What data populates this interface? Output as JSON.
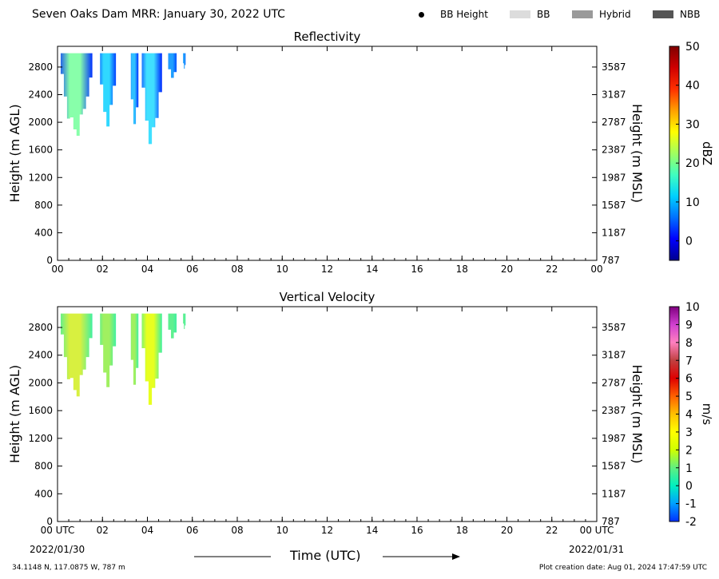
{
  "header": {
    "title": "Seven Oaks Dam MRR:  January 30, 2022 UTC",
    "legend": [
      {
        "label": "BB Height",
        "marker": "dot",
        "color": "#000000"
      },
      {
        "label": "BB",
        "marker": "swatch",
        "color": "#dcdcdc"
      },
      {
        "label": "Hybrid",
        "marker": "swatch",
        "color": "#9a9a9a"
      },
      {
        "label": "NBB",
        "marker": "swatch",
        "color": "#555555"
      }
    ]
  },
  "footer": {
    "x_label": "Time (UTC)",
    "start_date": "2022/01/30",
    "end_date": "2022/01/31",
    "location": "34.1148 N, 117.0875 W, 787 m",
    "creation": "Plot creation date: Aug 01, 2024 17:47:59 UTC"
  },
  "chart_data": [
    {
      "type": "heatmap",
      "title": "Reflectivity",
      "ylabel": "Height (m AGL)",
      "y2label": "Height (m MSL)",
      "xlim": [
        0,
        24
      ],
      "ylim": [
        0,
        3100
      ],
      "x_tick_labels": [
        "00",
        "02",
        "04",
        "06",
        "08",
        "10",
        "12",
        "14",
        "16",
        "18",
        "20",
        "22",
        "00"
      ],
      "y_ticks": [
        0,
        400,
        800,
        1200,
        1600,
        2000,
        2400,
        2800
      ],
      "y2_ticks": [
        "787",
        "1187",
        "1587",
        "1987",
        "2387",
        "2787",
        "3187",
        "3587"
      ],
      "colorbar": {
        "label": "dBZ",
        "range": [
          -5,
          50
        ],
        "ticks": [
          0,
          10,
          20,
          30,
          40,
          50
        ],
        "colors": [
          "#00008f",
          "#0000ff",
          "#0070ff",
          "#00d0ff",
          "#40ffbf",
          "#a0ff60",
          "#ffff00",
          "#ffa000",
          "#ff3000",
          "#d00000",
          "#800000"
        ]
      },
      "precip_bands": [
        {
          "x_start": 0.0,
          "x_end": 1.55,
          "base_height": 1700,
          "core_color": "#88ffaa",
          "edge_color": "#0030ff"
        },
        {
          "x_start": 1.75,
          "x_end": 2.6,
          "base_height": 1900,
          "core_color": "#30d8ff",
          "edge_color": "#0040ff"
        },
        {
          "x_start": 3.15,
          "x_end": 3.6,
          "base_height": 1850,
          "core_color": "#30c0ff",
          "edge_color": "#0030ff"
        },
        {
          "x_start": 3.6,
          "x_end": 4.65,
          "base_height": 1600,
          "core_color": "#40e0ff",
          "edge_color": "#0028ff"
        },
        {
          "x_start": 4.8,
          "x_end": 5.3,
          "base_height": 2600,
          "core_color": "#20a0ff",
          "edge_color": "#0050ff"
        },
        {
          "x_start": 5.55,
          "x_end": 5.7,
          "base_height": 2750,
          "core_color": "#20a0ff",
          "edge_color": "#0060ff"
        }
      ]
    },
    {
      "type": "heatmap",
      "title": "Vertical Velocity",
      "ylabel": "Height (m AGL)",
      "y2label": "Height (m MSL)",
      "xlim": [
        0,
        24
      ],
      "ylim": [
        0,
        3100
      ],
      "x_tick_labels": [
        "00 UTC",
        "02",
        "04",
        "06",
        "08",
        "10",
        "12",
        "14",
        "16",
        "18",
        "20",
        "22",
        "00 UTC"
      ],
      "y_ticks": [
        0,
        400,
        800,
        1200,
        1600,
        2000,
        2400,
        2800
      ],
      "y2_ticks": [
        "787",
        "1187",
        "1587",
        "1987",
        "2387",
        "2787",
        "3187",
        "3587"
      ],
      "colorbar": {
        "label": "m/s",
        "range": [
          -2,
          10
        ],
        "ticks": [
          -2,
          -1,
          0,
          1,
          2,
          3,
          4,
          5,
          6,
          7,
          8,
          9,
          10
        ],
        "colors": [
          "#0030ff",
          "#00a0ff",
          "#00f0c0",
          "#60f080",
          "#d0ff00",
          "#ffff00",
          "#ffc000",
          "#ff6000",
          "#e00000",
          "#c04040",
          "#ff80c0",
          "#d040d0",
          "#800080"
        ]
      },
      "precip_bands": [
        {
          "x_start": 0.0,
          "x_end": 1.55,
          "base_height": 1700,
          "core_color": "#d8f040",
          "edge_color": "#40f0a0"
        },
        {
          "x_start": 1.75,
          "x_end": 2.6,
          "base_height": 1900,
          "core_color": "#a0f060",
          "edge_color": "#40f0a0"
        },
        {
          "x_start": 3.15,
          "x_end": 3.6,
          "base_height": 1850,
          "core_color": "#a0f060",
          "edge_color": "#40f0a0"
        },
        {
          "x_start": 3.6,
          "x_end": 4.65,
          "base_height": 1600,
          "core_color": "#e8ff20",
          "edge_color": "#40f0a0"
        },
        {
          "x_start": 4.8,
          "x_end": 5.3,
          "base_height": 2600,
          "core_color": "#60f090",
          "edge_color": "#40f0a0"
        },
        {
          "x_start": 5.55,
          "x_end": 5.7,
          "base_height": 2750,
          "core_color": "#60f090",
          "edge_color": "#40f0a0"
        }
      ]
    }
  ]
}
